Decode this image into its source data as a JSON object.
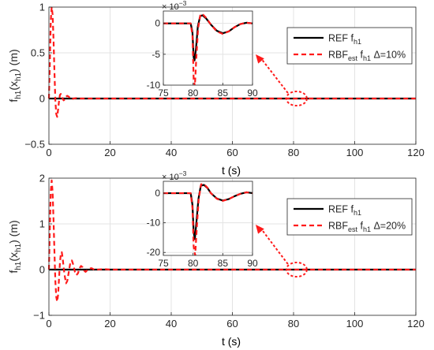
{
  "figure": {
    "xlabel": "t (s)"
  },
  "chart_data": [
    {
      "type": "line",
      "xlabel": "t (s)",
      "ylabel": {
        "base": "f",
        "sub1": "h1",
        "mid": "(x",
        "sub2": "h1",
        "tail": ") (m)"
      },
      "xlim": [
        0,
        120
      ],
      "ylim": [
        -0.5,
        1
      ],
      "xticks": [
        0,
        20,
        40,
        60,
        80,
        100,
        120
      ],
      "yticks": [
        -0.5,
        0,
        0.5,
        1
      ],
      "ytick_labels": [
        "−0.5",
        "0",
        "0.5",
        "1"
      ],
      "grid": true,
      "legend": {
        "placement": "top-right",
        "entries": [
          {
            "label": "REF f",
            "sub": "h1",
            "color": "#000000",
            "style": "solid"
          },
          {
            "label": "RBF",
            "sub": "est",
            "mid": " f",
            "sub2": "h1",
            "tail": " Δ=10%",
            "color": "#ff1a1a",
            "style": "dashed"
          }
        ]
      },
      "series": [
        {
          "name": "REF f_h1",
          "color": "#000000",
          "x": [
            0,
            120
          ],
          "y": [
            0,
            0
          ]
        },
        {
          "name": "RBF_est f_h1 Δ=10%",
          "color": "#ff1a1a",
          "x": [
            0,
            0.3,
            0.6,
            0.9,
            1.2,
            1.5,
            1.8,
            2.1,
            2.4,
            2.7,
            3.0,
            3.3,
            3.6,
            3.9,
            4.2,
            4.5,
            4.8,
            5.2,
            5.6,
            6.0,
            6.5,
            7.0,
            7.5,
            8.0,
            9.0,
            10.0,
            12.0,
            120
          ],
          "y": [
            0,
            0.38,
            0.85,
            1.0,
            0.92,
            0.65,
            0.3,
            -0.02,
            -0.17,
            -0.2,
            -0.12,
            -0.03,
            0.04,
            0.05,
            0.03,
            0.0,
            -0.02,
            -0.01,
            0.02,
            0.03,
            0.02,
            0.0,
            -0.01,
            0.0,
            0.005,
            0.0,
            0.0,
            0.0
          ]
        }
      ],
      "zoom_marker": {
        "x": 81,
        "y": 0
      },
      "inset": {
        "xlim": [
          75,
          90
        ],
        "ylim": [
          -0.01,
          0.002
        ],
        "xticks": [
          75,
          80,
          85,
          90
        ],
        "yticks": [
          0,
          -0.005,
          -0.01
        ],
        "ytick_labels": [
          "0",
          "-5",
          "-10"
        ],
        "exponent_label": "× 10",
        "exponent_power": "−3",
        "grid": true,
        "series": [
          {
            "name": "REF",
            "color": "#000000",
            "x": [
              75,
              79.6,
              79.9,
              80.1,
              80.25,
              80.5,
              80.8,
              81.2,
              81.6,
              82.2,
              83,
              84,
              85,
              86,
              87,
              88,
              89,
              90
            ],
            "y": [
              0,
              0,
              -0.0015,
              -0.0055,
              -0.006,
              -0.004,
              -0.0005,
              0.0012,
              0.0013,
              0.0008,
              -0.0002,
              -0.0012,
              -0.0016,
              -0.0013,
              -0.0006,
              -0.0001,
              0.0001,
              0.0
            ]
          },
          {
            "name": "RBF_est",
            "color": "#ff1a1a",
            "x": [
              75,
              79.6,
              79.9,
              80.1,
              80.3,
              80.55,
              80.85,
              81.25,
              81.7,
              82.3,
              83,
              84,
              85,
              86,
              87,
              88,
              89,
              90
            ],
            "y": [
              0,
              0,
              -0.002,
              -0.009,
              -0.0102,
              -0.0055,
              -0.0008,
              0.0015,
              0.0014,
              0.0008,
              -0.0002,
              -0.0013,
              -0.0017,
              -0.0013,
              -0.0006,
              -0.0001,
              0.0001,
              0.0
            ]
          }
        ]
      }
    },
    {
      "type": "line",
      "xlabel": "t (s)",
      "ylabel": {
        "base": "f",
        "sub1": "h1",
        "mid": "(x",
        "sub2": "h1",
        "tail": ") (m)"
      },
      "xlim": [
        0,
        120
      ],
      "ylim": [
        -1,
        2
      ],
      "xticks": [
        0,
        20,
        40,
        60,
        80,
        100,
        120
      ],
      "yticks": [
        -1,
        0,
        1,
        2
      ],
      "ytick_labels": [
        "−1",
        "0",
        "1",
        "2"
      ],
      "grid": true,
      "legend": {
        "placement": "top-right",
        "entries": [
          {
            "label": "REF f",
            "sub": "h1",
            "color": "#000000",
            "style": "solid"
          },
          {
            "label": "RBF",
            "sub": "est",
            "mid": " f",
            "sub2": "h1",
            "tail": " Δ=20%",
            "color": "#ff1a1a",
            "style": "dashed"
          }
        ]
      },
      "series": [
        {
          "name": "REF f_h1",
          "color": "#000000",
          "x": [
            0,
            120
          ],
          "y": [
            0,
            0
          ]
        },
        {
          "name": "RBF_est f_h1 Δ=20%",
          "color": "#ff1a1a",
          "x": [
            0,
            0.3,
            0.6,
            0.9,
            1.2,
            1.5,
            1.8,
            2.1,
            2.4,
            2.7,
            3.0,
            3.3,
            3.6,
            3.9,
            4.2,
            4.5,
            4.8,
            5.2,
            5.6,
            6.0,
            6.5,
            7.0,
            7.5,
            8.0,
            8.5,
            9.0,
            9.5,
            10,
            10.5,
            11,
            11.5,
            12,
            13,
            14,
            15,
            16,
            18,
            20,
            120
          ],
          "y": [
            0,
            0.9,
            1.7,
            1.95,
            1.7,
            1.1,
            0.4,
            -0.25,
            -0.6,
            -0.7,
            -0.55,
            -0.2,
            0.15,
            0.35,
            0.38,
            0.25,
            0.05,
            -0.15,
            -0.3,
            -0.25,
            -0.05,
            0.15,
            0.2,
            0.1,
            -0.05,
            -0.12,
            -0.08,
            0.03,
            0.08,
            0.05,
            -0.02,
            -0.05,
            0.02,
            0.03,
            -0.01,
            0.0,
            0.01,
            0.0,
            0.0
          ]
        }
      ],
      "zoom_marker": {
        "x": 81,
        "y": 0
      },
      "inset": {
        "xlim": [
          75,
          90
        ],
        "ylim": [
          -0.021,
          0.004
        ],
        "xticks": [
          75,
          80,
          85,
          90
        ],
        "yticks": [
          0,
          -0.01,
          -0.02
        ],
        "ytick_labels": [
          "0",
          "-10",
          "-20"
        ],
        "exponent_label": "× 10",
        "exponent_power": "−3",
        "grid": true,
        "series": [
          {
            "name": "REF",
            "color": "#000000",
            "x": [
              75,
              79.6,
              79.9,
              80.1,
              80.3,
              80.6,
              80.9,
              81.3,
              81.8,
              82.4,
              83,
              84,
              85,
              86,
              87,
              88,
              89,
              90
            ],
            "y": [
              0,
              0,
              -0.004,
              -0.013,
              -0.0155,
              -0.009,
              -0.002,
              0.0025,
              0.0028,
              0.0018,
              0.0,
              -0.0018,
              -0.0025,
              -0.002,
              -0.001,
              -0.0002,
              0.0003,
              0.0
            ]
          },
          {
            "name": "RBF_est",
            "color": "#ff1a1a",
            "x": [
              75,
              79.6,
              79.9,
              80.1,
              80.35,
              80.65,
              80.95,
              81.35,
              81.85,
              82.4,
              83,
              84,
              85,
              86,
              87,
              88,
              89,
              90
            ],
            "y": [
              0,
              0,
              -0.005,
              -0.018,
              -0.021,
              -0.011,
              -0.002,
              0.003,
              0.003,
              0.0019,
              0.0,
              -0.0019,
              -0.0026,
              -0.002,
              -0.001,
              -0.0002,
              0.0003,
              0.0
            ]
          }
        ]
      }
    }
  ]
}
